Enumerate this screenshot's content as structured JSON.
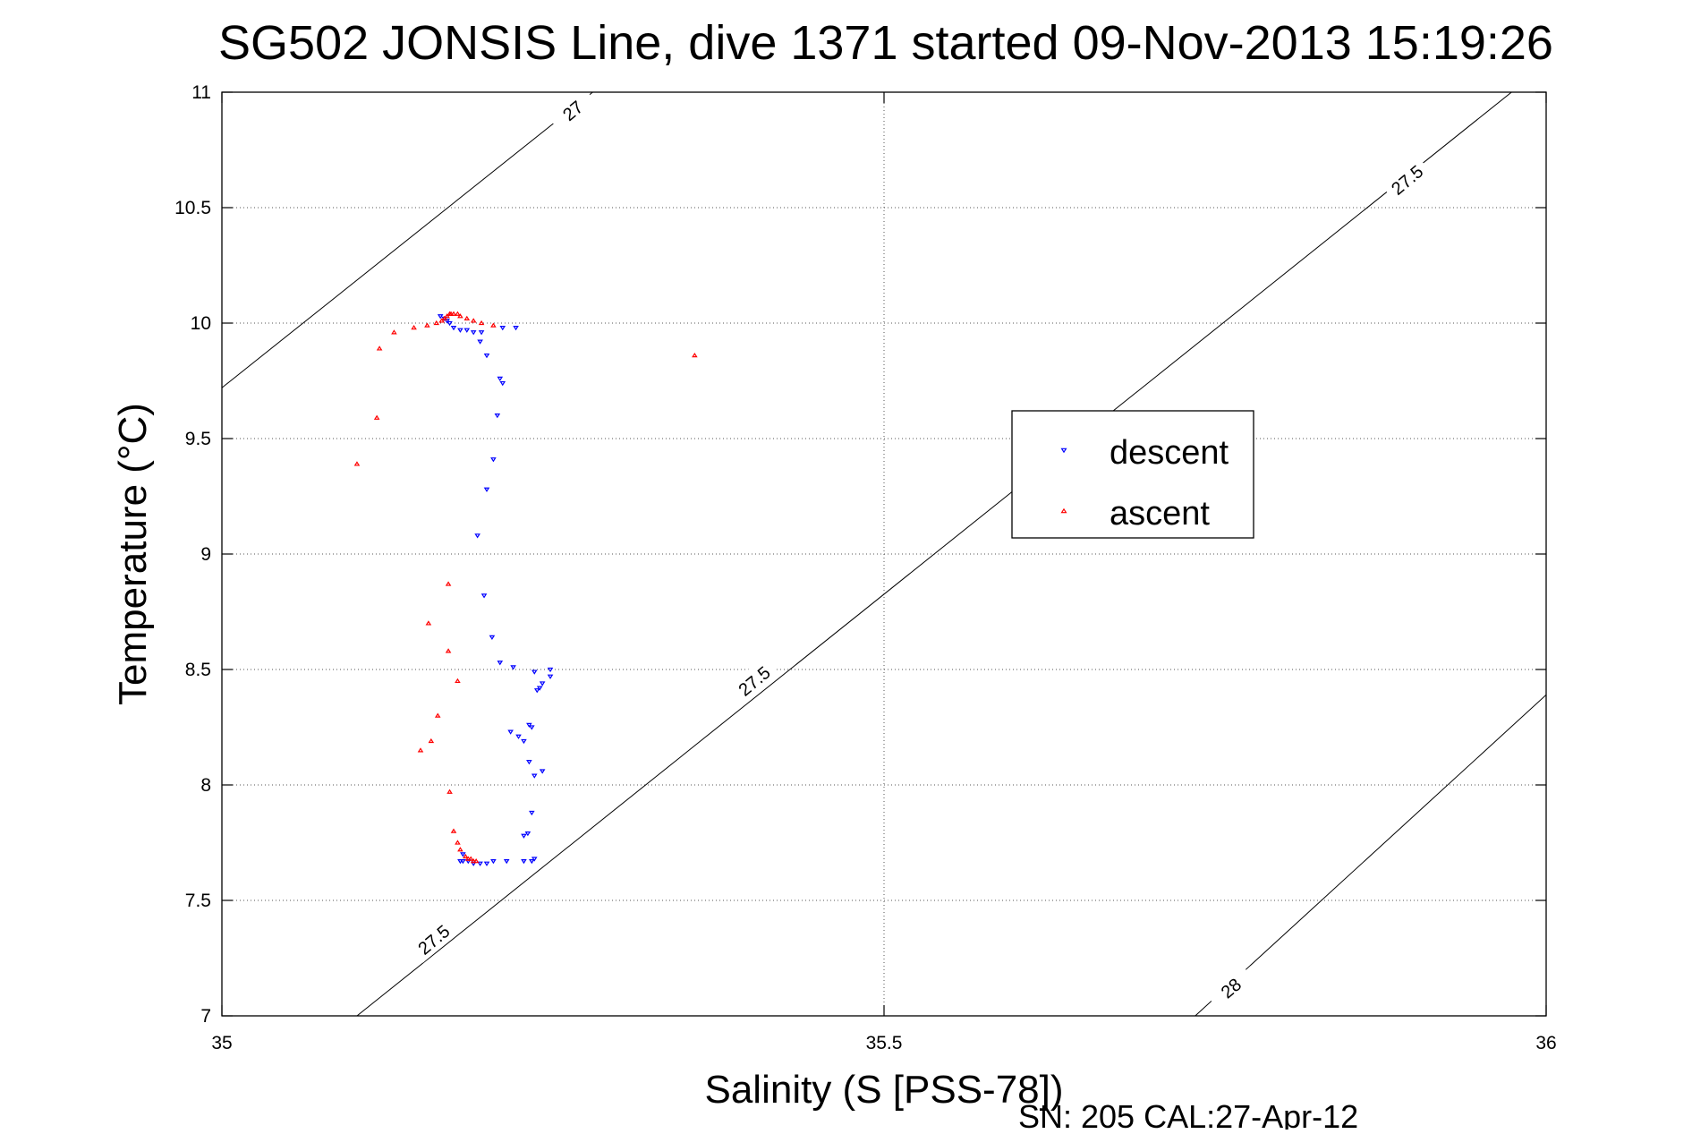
{
  "chart_data": {
    "type": "scatter",
    "title": "SG502 JONSIS Line, dive 1371 started 09-Nov-2013 15:19:26",
    "xlabel": "Salinity (S [PSS-78])",
    "ylabel": "Temperature (°C)",
    "footer": "SN: 205  CAL:27-Apr-12",
    "xlim": [
      35,
      36
    ],
    "ylim": [
      7,
      11
    ],
    "x_ticks": [
      35,
      35.5,
      36
    ],
    "x_tick_labels": [
      "35",
      "35.5",
      "36"
    ],
    "y_ticks": [
      7,
      7.5,
      8,
      8.5,
      9,
      9.5,
      10,
      10.5,
      11
    ],
    "y_tick_labels": [
      "7",
      "7.5",
      "8",
      "8.5",
      "9",
      "9.5",
      "10",
      "10.5",
      "11"
    ],
    "grid": true,
    "legend_position": "center-right",
    "contours": [
      {
        "label": "27",
        "line": [
          [
            35.0,
            9.72
          ],
          [
            35.28,
            11.0
          ]
        ],
        "label_at": [
          35.265,
          10.92
        ],
        "label_angle": -40
      },
      {
        "label": "27.5",
        "line": [
          [
            35.102,
            7.0
          ],
          [
            36.0,
            11.12
          ]
        ],
        "label_points": [
          [
            35.16,
            7.33
          ],
          [
            35.402,
            8.45
          ],
          [
            35.642,
            9.55
          ],
          [
            35.895,
            10.62
          ]
        ],
        "label_angle": -40
      },
      {
        "label": "28",
        "line": [
          [
            35.735,
            7.0
          ],
          [
            36.0,
            8.39
          ]
        ],
        "label_points": [
          [
            35.762,
            7.12
          ]
        ],
        "label_angle": -40
      }
    ],
    "series": [
      {
        "name": "descent",
        "color": "#0000ff",
        "marker": "triangle-down",
        "x": [
          35.165,
          35.168,
          35.17,
          35.172,
          35.175,
          35.18,
          35.185,
          35.19,
          35.195,
          35.2,
          35.21,
          35.212,
          35.208,
          35.205,
          35.2,
          35.193,
          35.198,
          35.204,
          35.21,
          35.22,
          35.236,
          35.248,
          35.242,
          35.24,
          35.238,
          35.234,
          35.224,
          35.228,
          35.232,
          35.242,
          35.236,
          35.234,
          35.231,
          35.228,
          35.236,
          35.234,
          35.228,
          35.215,
          35.205,
          35.2,
          35.195,
          35.19,
          35.186,
          35.182,
          35.18,
          35.182,
          35.218,
          35.248,
          35.232,
          35.222,
          35.212,
          35.196
        ],
        "y": [
          10.03,
          10.02,
          10.01,
          10.0,
          9.98,
          9.97,
          9.97,
          9.96,
          9.92,
          9.86,
          9.76,
          9.74,
          9.6,
          9.41,
          9.28,
          9.08,
          8.82,
          8.64,
          8.53,
          8.51,
          8.49,
          8.47,
          8.44,
          8.42,
          8.41,
          8.25,
          8.21,
          8.19,
          8.1,
          8.06,
          8.04,
          7.88,
          7.79,
          7.78,
          7.68,
          7.67,
          7.67,
          7.67,
          7.67,
          7.66,
          7.66,
          7.66,
          7.67,
          7.67,
          7.67,
          7.7,
          8.23,
          8.5,
          8.26,
          9.98,
          9.98,
          9.96
        ]
      },
      {
        "name": "ascent",
        "color": "#ff0000",
        "marker": "triangle-up",
        "x": [
          35.102,
          35.117,
          35.119,
          35.13,
          35.145,
          35.155,
          35.162,
          35.166,
          35.168,
          35.17,
          35.172,
          35.173,
          35.175,
          35.178,
          35.18,
          35.185,
          35.19,
          35.196,
          35.205,
          35.357,
          35.171,
          35.156,
          35.171,
          35.178,
          35.163,
          35.158,
          35.15,
          35.172,
          35.175,
          35.178,
          35.18,
          35.184,
          35.186,
          35.188,
          35.19,
          35.192
        ],
        "y": [
          9.39,
          9.59,
          9.89,
          9.96,
          9.98,
          9.99,
          10.0,
          10.01,
          10.02,
          10.03,
          10.04,
          10.04,
          10.04,
          10.04,
          10.03,
          10.02,
          10.01,
          10.0,
          9.99,
          9.86,
          8.87,
          8.7,
          8.58,
          8.45,
          8.3,
          8.19,
          8.15,
          7.97,
          7.8,
          7.75,
          7.72,
          7.69,
          7.68,
          7.68,
          7.67,
          7.67
        ]
      }
    ]
  }
}
